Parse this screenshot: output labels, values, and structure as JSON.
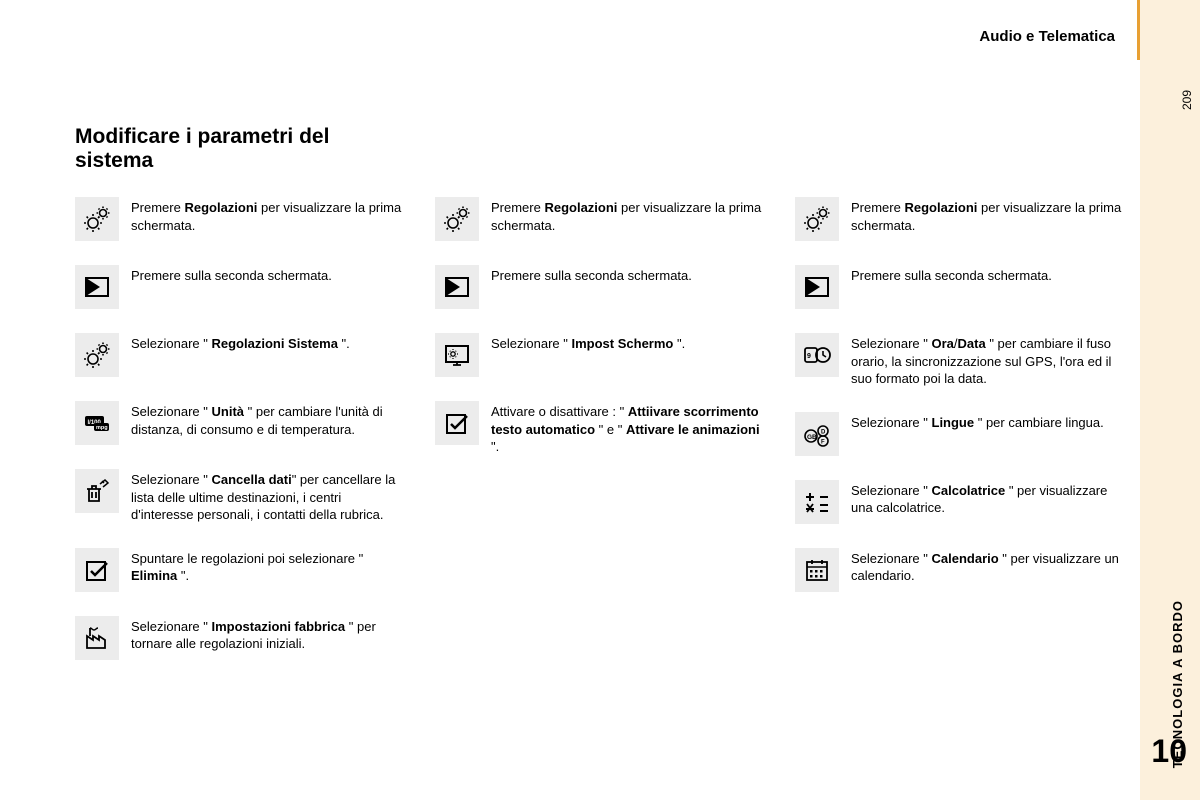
{
  "header": "Audio e Telematica",
  "page_number": "209",
  "section_label": "TECNOLOGIA A BORDO",
  "section_number": "10",
  "title": "Modificare i parametri del sistema",
  "colors": {
    "sidebar_bg": "#fcf0dc",
    "icon_bg": "#ececec",
    "text": "#000000",
    "accent": "#e8a033"
  },
  "columns": [
    {
      "items": [
        {
          "icon": "gears",
          "html": "Premere <b>Regolazioni</b> per visualizzare la prima schermata."
        },
        {
          "icon": "screen2",
          "html": "Premere sulla seconda schermata."
        },
        {
          "icon": "gears",
          "html": "Selezionare \" <b>Regolazioni Sistema</b> \"."
        },
        {
          "icon": "units",
          "html": "Selezionare \" <b>Unità</b> \" per cambiare l'unità di distanza, di consumo e di temperatura."
        },
        {
          "icon": "trash",
          "html": "Selezionare \" <b>Cancella dati</b>\" per cancellare la lista delle ultime destinazioni, i centri d'interesse personali, i contatti della rubrica."
        },
        {
          "icon": "check",
          "html": "Spuntare le regolazioni poi selezionare \" <b>Elimina</b> \"."
        },
        {
          "icon": "factory",
          "html": "Selezionare \" <b>Impostazioni fabbrica</b> \" per tornare alle regolazioni iniziali."
        }
      ]
    },
    {
      "items": [
        {
          "icon": "gears",
          "html": "Premere <b>Regolazioni</b> per visualizzare la prima schermata."
        },
        {
          "icon": "screen2",
          "html": "Premere sulla seconda schermata."
        },
        {
          "icon": "display",
          "html": "Selezionare \" <b>Impost Schermo</b> \"."
        },
        {
          "icon": "check",
          "html": "Attivare o disattivare : \" <b>Attiivare scorrimento testo automatico</b> \" e \" <b>Attivare le animazioni</b> \"."
        }
      ]
    },
    {
      "items": [
        {
          "icon": "gears",
          "html": "Premere <b>Regolazioni</b> per visualizzare la prima schermata."
        },
        {
          "icon": "screen2",
          "html": "Premere sulla seconda schermata."
        },
        {
          "icon": "clock",
          "html": "Selezionare \" <b>Ora</b>/<b>Data</b> \" per cambiare il fuso orario, la sincronizzazione sul GPS, l'ora ed il suo formato poi la data."
        },
        {
          "icon": "lang",
          "html": "Selezionare \" <b>Lingue</b> \" per cambiare lingua."
        },
        {
          "icon": "calc",
          "html": "Selezionare \" <b>Calcolatrice</b> \" per visualizzare una calcolatrice."
        },
        {
          "icon": "calendar",
          "html": "Selezionare \" <b>Calendario</b> \" per visualizzare un calendario."
        }
      ]
    }
  ]
}
